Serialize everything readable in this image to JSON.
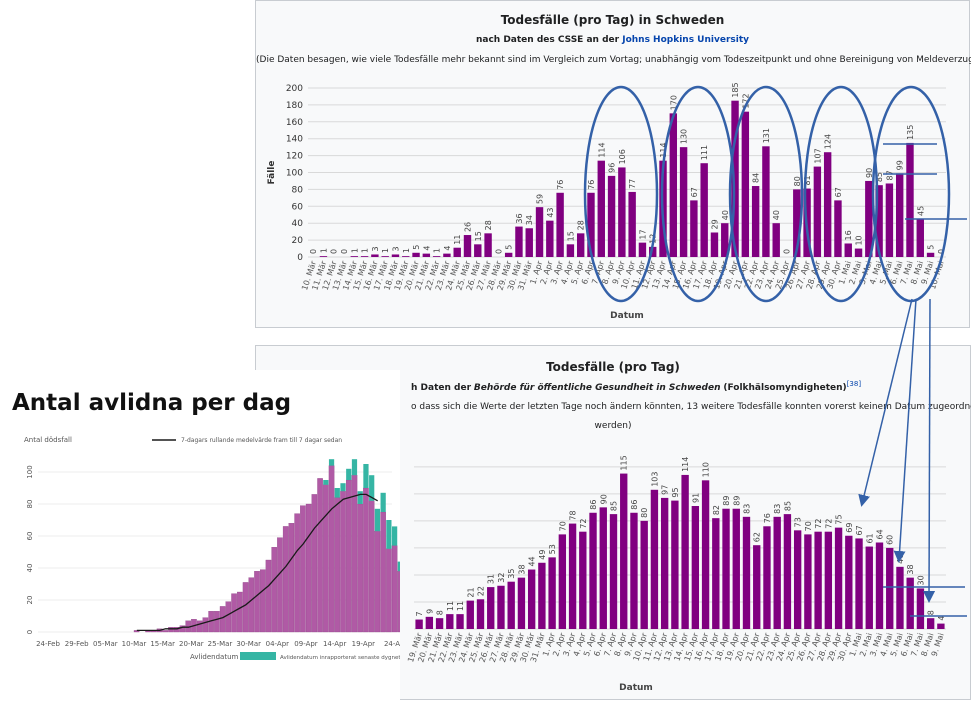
{
  "colors": {
    "bar": "#800080",
    "ring": "#3461a8",
    "left_bar": "#b05aa5",
    "left_bar_teal": "#35b5a4",
    "line": "#1a1a1a",
    "grid": "#d9d9d9"
  },
  "chart_data": [
    {
      "type": "bar",
      "title": "Todesfälle (pro Tag) in Schweden",
      "subtitle_prefix": "nach Daten des CSSE an der",
      "subtitle_link": "Johns Hopkins University",
      "note": "(Die Daten besagen, wie viele Todesfälle mehr bekannt sind im Vergleich zum Vortag; unabhängig vom Todeszeitpunkt und ohne Bereinigung von Meldeverzug.)",
      "xlabel": "Datum",
      "ylabel": "Fälle",
      "ylim": [
        0,
        200
      ],
      "yticks": [
        0,
        20,
        40,
        60,
        80,
        100,
        120,
        140,
        160,
        180,
        200
      ],
      "categories": [
        "10. Mär",
        "11. Mär",
        "12. Mär",
        "13. Mär",
        "14. Mär",
        "15. Mär",
        "16. Mär",
        "17. Mär",
        "18. Mär",
        "19. Mär",
        "20. Mär",
        "21. Mär",
        "22. Mär",
        "23. Mär",
        "24. Mär",
        "25. Mär",
        "26. Mär",
        "27. Mär",
        "28. Mär",
        "29. Mär",
        "30. Mär",
        "31. Mär",
        "1. Apr",
        "2. Apr",
        "3. Apr",
        "4. Apr",
        "5. Apr",
        "6. Apr",
        "7. Apr",
        "8. Apr",
        "9. Apr",
        "10. Apr",
        "11. Apr",
        "12. Apr",
        "13. Apr",
        "14. Apr",
        "15. Apr",
        "16. Apr",
        "17. Apr",
        "18. Apr",
        "19. Apr",
        "20. Apr",
        "21. Apr",
        "22. Apr",
        "23. Apr",
        "24. Apr",
        "25. Apr",
        "26. Apr",
        "27. Apr",
        "28. Apr",
        "29. Apr",
        "30. Apr",
        "1. Mai",
        "2. Mai",
        "3. Mai",
        "4. Mai",
        "5. Mai",
        "6. Mai",
        "7. Mai",
        "8. Mai",
        "9. Mai",
        "10. Mai"
      ],
      "values": [
        0,
        1,
        0,
        0,
        1,
        1,
        3,
        1,
        3,
        1,
        5,
        4,
        1,
        4,
        11,
        26,
        15,
        28,
        0,
        5,
        36,
        34,
        59,
        43,
        76,
        15,
        28,
        76,
        114,
        96,
        106,
        77,
        17,
        12,
        114,
        170,
        130,
        67,
        111,
        29,
        40,
        185,
        172,
        84,
        131,
        40,
        0,
        80,
        81,
        107,
        124,
        67,
        16,
        10,
        90,
        85,
        87,
        99,
        135,
        45,
        5,
        0
      ]
    },
    {
      "type": "bar",
      "title": "Todesfälle (pro Tag)",
      "subtitle_prefix": "h Daten der",
      "subtitle_italic": "Behörde für öffentliche Gesundheit in Schweden",
      "subtitle_suffix": "(Folkhälsomyndigheten)",
      "subtitle_ref": "[38]",
      "note1": "o dass sich die Werte der letzten Tage noch ändern könnten, 13 weitere Todesfälle konnten vorerst keinem Datum zugeordnet",
      "note2": "werden)",
      "xlabel": "Datum",
      "categories": [
        "19. Mär",
        "20. Mär",
        "21. Mär",
        "22. Mär",
        "23. Mär",
        "24. Mär",
        "25. Mär",
        "26. Mär",
        "27. Mär",
        "28. Mär",
        "29. Mär",
        "30. Mär",
        "31. Mär",
        "1. Apr",
        "2. Apr",
        "3. Apr",
        "4. Apr",
        "5. Apr",
        "6. Apr",
        "7. Apr",
        "8. Apr",
        "9. Apr",
        "10. Apr",
        "11. Apr",
        "12. Apr",
        "13. Apr",
        "14. Apr",
        "15. Apr",
        "16. Apr",
        "17. Apr",
        "18. Apr",
        "19. Apr",
        "20. Apr",
        "21. Apr",
        "22. Apr",
        "23. Apr",
        "24. Apr",
        "25. Apr",
        "26. Apr",
        "27. Apr",
        "28. Apr",
        "29. Apr",
        "30. Apr",
        "1. Mai",
        "2. Mai",
        "3. Mai",
        "4. Mai",
        "5. Mai",
        "6. Mai",
        "7. Mai",
        "8. Mai",
        "9. Mai"
      ],
      "values": [
        7,
        9,
        8,
        11,
        11,
        21,
        22,
        31,
        32,
        35,
        38,
        44,
        49,
        53,
        70,
        78,
        72,
        86,
        90,
        85,
        115,
        86,
        80,
        103,
        97,
        95,
        114,
        91,
        110,
        82,
        89,
        89,
        83,
        62,
        76,
        83,
        85,
        73,
        70,
        72,
        72,
        75,
        69,
        67,
        61,
        64,
        60,
        46,
        38,
        30,
        8,
        4
      ]
    },
    {
      "type": "bar",
      "title": "Antal avlidna per dag",
      "ylabel": "Antal dödsfall",
      "legend_line": "7-dagars rullande medelvärde fram till 7 dagar sedan",
      "legend_box1": "Avlidendatum",
      "legend_box2": "Avlidendatum inrapporterat senaste dygnet",
      "ylim": [
        0,
        110
      ],
      "yticks": [
        0,
        20,
        40,
        60,
        80,
        100
      ],
      "xticks": [
        "24-Feb",
        "29-Feb",
        "05-Mar",
        "10-Mar",
        "15-Mar",
        "20-Mar",
        "25-Mar",
        "30-Mar",
        "04-Apr",
        "09-Apr",
        "14-Apr",
        "19-Apr",
        "24-A"
      ],
      "values": [
        1,
        0,
        1,
        1,
        2,
        1,
        3,
        3,
        4,
        7,
        8,
        7,
        9,
        13,
        13,
        16,
        19,
        24,
        25,
        31,
        34,
        38,
        39,
        45,
        53,
        59,
        66,
        68,
        74,
        79,
        80,
        86,
        96,
        92,
        104,
        84,
        88,
        95,
        98,
        80,
        90,
        82,
        63,
        75,
        52,
        54,
        38,
        19,
        6,
        2
      ],
      "recent": [
        0,
        0,
        0,
        0,
        0,
        0,
        0,
        0,
        0,
        0,
        0,
        0,
        0,
        0,
        0,
        0,
        0,
        0,
        0,
        0,
        0,
        0,
        0,
        0,
        0,
        0,
        0,
        0,
        0,
        0,
        0,
        0,
        0,
        3,
        4,
        6,
        5,
        7,
        10,
        8,
        15,
        16,
        14,
        12,
        18,
        12,
        6,
        3,
        2,
        0
      ],
      "avg": [
        1,
        1,
        1,
        1,
        1,
        2,
        2,
        2,
        3,
        3,
        4,
        5,
        6,
        7,
        8,
        9,
        11,
        13,
        15,
        17,
        20,
        23,
        26,
        29,
        33,
        37,
        41,
        46,
        51,
        55,
        60,
        65,
        69,
        73,
        77,
        80,
        83,
        84,
        85,
        86,
        86,
        84,
        82
      ]
    }
  ]
}
